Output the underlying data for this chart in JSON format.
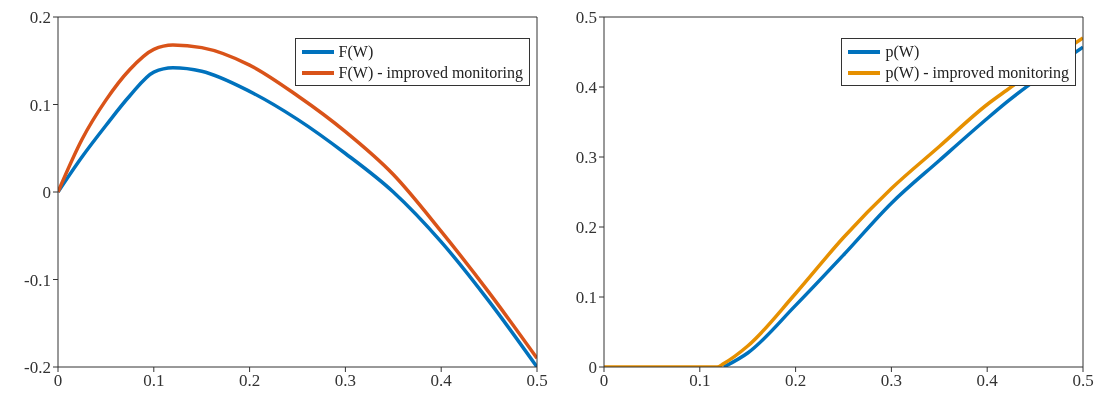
{
  "chart_data": [
    {
      "type": "line",
      "x": [
        0,
        0.025,
        0.05,
        0.075,
        0.1,
        0.12,
        0.15,
        0.2,
        0.25,
        0.3,
        0.35,
        0.4,
        0.45,
        0.5
      ],
      "series": [
        {
          "name": "F(W)",
          "color": "#0072bd",
          "values": [
            0,
            0.04,
            0.076,
            0.11,
            0.137,
            0.142,
            0.138,
            0.115,
            0.083,
            0.044,
            0.0,
            -0.057,
            -0.125,
            -0.2
          ]
        },
        {
          "name": "F(W) - improved monitoring",
          "color": "#d95319",
          "values": [
            0,
            0.06,
            0.105,
            0.14,
            0.163,
            0.168,
            0.165,
            0.145,
            0.11,
            0.069,
            0.02,
            -0.045,
            -0.115,
            -0.19
          ]
        }
      ],
      "xlim": [
        0,
        0.5
      ],
      "xticks": [
        0,
        0.1,
        0.2,
        0.3,
        0.4,
        0.5
      ],
      "ylim": [
        -0.2,
        0.2
      ],
      "yticks": [
        -0.2,
        -0.1,
        0,
        0.1,
        0.2
      ],
      "grid": false,
      "legend": "top right",
      "marker": "none",
      "line_style": "solid"
    },
    {
      "type": "line",
      "x": [
        0,
        0.1,
        0.118,
        0.125,
        0.15,
        0.2,
        0.25,
        0.3,
        0.35,
        0.4,
        0.42,
        0.5
      ],
      "series": [
        {
          "name": "p(W)",
          "color": "#0072bd",
          "values": [
            null,
            null,
            null,
            0,
            0.02,
            0.088,
            0.16,
            0.234,
            0.295,
            0.355,
            0.378,
            0.457
          ]
        },
        {
          "name": "p(W) - improved monitoring",
          "color": "#e69000",
          "values": [
            0,
            0,
            0,
            0.005,
            0.03,
            0.105,
            0.185,
            0.255,
            0.315,
            0.375,
            0.395,
            0.47
          ]
        }
      ],
      "xlim": [
        0,
        0.5
      ],
      "xticks": [
        0,
        0.1,
        0.2,
        0.3,
        0.4,
        0.5
      ],
      "ylim": [
        0,
        0.5
      ],
      "yticks": [
        0,
        0.1,
        0.2,
        0.3,
        0.4,
        0.5
      ],
      "grid": false,
      "legend": "top right",
      "marker": "none",
      "line_style": "solid"
    }
  ]
}
